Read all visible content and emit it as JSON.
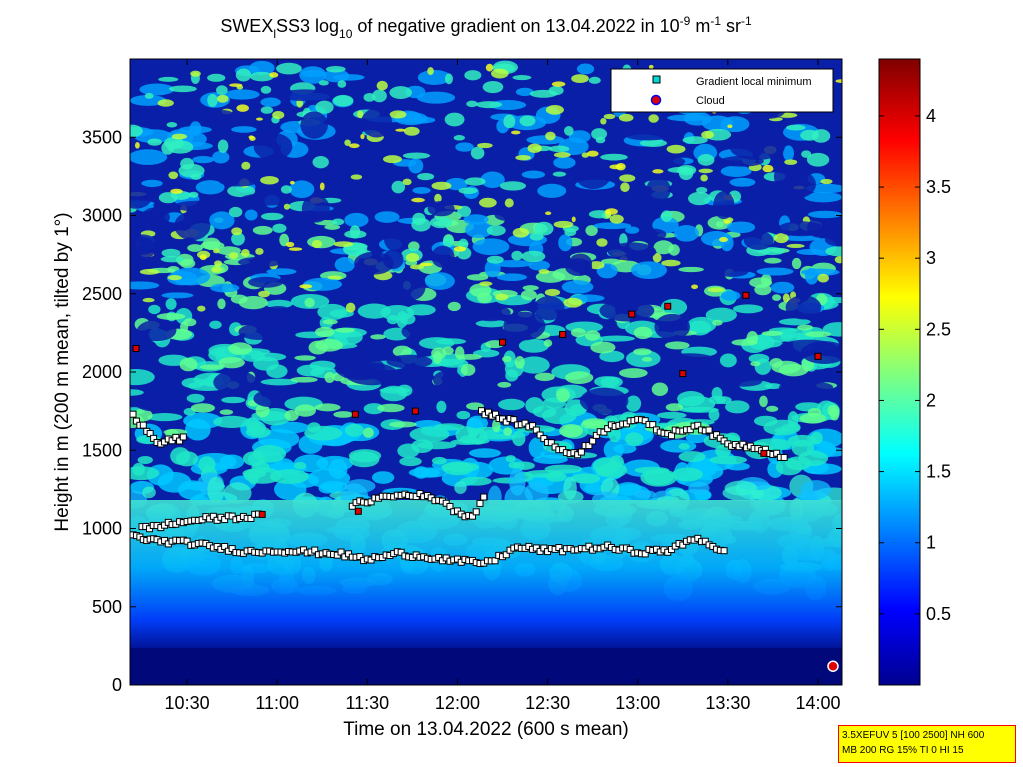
{
  "chart_data": {
    "type": "heatmap",
    "title": {
      "prefix": "SWEX",
      "prefix_sub": "l",
      "main": "SS3 log",
      "main_sub": "10",
      "rest": " of negative gradient on 13.04.2022 in 10",
      "exp1": "-9",
      "unit1": " m",
      "exp2": "-1",
      "unit2": " sr",
      "exp3": "-1"
    },
    "xlabel": "Time on 13.04.2022 (600 s mean)",
    "ylabel": "Height in m (200 m mean, tilted by 1°)",
    "x_ticks": [
      "10:30",
      "11:00",
      "11:30",
      "12:00",
      "12:30",
      "13:00",
      "13:30",
      "14:00"
    ],
    "x_tick_minutes": [
      630,
      660,
      690,
      720,
      750,
      780,
      810,
      840
    ],
    "xlim_minutes": [
      611,
      848
    ],
    "y_ticks": [
      0,
      500,
      1000,
      1500,
      2000,
      2500,
      3000,
      3500
    ],
    "ylim": [
      0,
      4000
    ],
    "colorbar_ticks": [
      0.5,
      1,
      1.5,
      2,
      2.5,
      3,
      3.5,
      4
    ],
    "clim": [
      0,
      4.4
    ],
    "colormap": "jet",
    "legend": {
      "placement": "top-right",
      "entries": [
        {
          "label": "Gradient local minimum",
          "marker": "square",
          "color": "#00d8d8"
        },
        {
          "label": "Cloud",
          "marker": "circle",
          "color": "#e00000",
          "edge": "#0000ff"
        }
      ]
    },
    "gradient_minimum_layers": [
      {
        "t": [
          612,
          620,
          630,
          640,
          650,
          660,
          670,
          680,
          690,
          700,
          710,
          720,
          730,
          740,
          750,
          760,
          770,
          780,
          790,
          800,
          810
        ],
        "h": [
          950,
          920,
          910,
          880,
          850,
          860,
          850,
          840,
          800,
          840,
          820,
          790,
          780,
          880,
          860,
          870,
          880,
          850,
          860,
          940,
          840
        ]
      },
      {
        "t": [
          615,
          625,
          635,
          645,
          655
        ],
        "h": [
          1000,
          1030,
          1060,
          1070,
          1080
        ]
      },
      {
        "t": [
          685,
          695,
          705,
          715,
          720,
          725,
          730
        ],
        "h": [
          1150,
          1200,
          1220,
          1180,
          1100,
          1080,
          1240
        ]
      },
      {
        "t": [
          728,
          735,
          745,
          750,
          755,
          760,
          770,
          780,
          790,
          800,
          810,
          820,
          830
        ],
        "h": [
          1750,
          1700,
          1650,
          1560,
          1490,
          1480,
          1650,
          1700,
          1600,
          1660,
          1540,
          1520,
          1450
        ]
      },
      {
        "t": [
          612,
          620,
          630
        ],
        "h": [
          1720,
          1550,
          1580
        ]
      }
    ],
    "cloud_points": [
      {
        "t": 613,
        "h": 2150
      },
      {
        "t": 686,
        "h": 1730
      },
      {
        "t": 706,
        "h": 1750
      },
      {
        "t": 735,
        "h": 2190
      },
      {
        "t": 755,
        "h": 2240
      },
      {
        "t": 778,
        "h": 2370
      },
      {
        "t": 790,
        "h": 2420
      },
      {
        "t": 795,
        "h": 1990
      },
      {
        "t": 816,
        "h": 2490
      },
      {
        "t": 822,
        "h": 1480
      },
      {
        "t": 840,
        "h": 2100
      },
      {
        "t": 655,
        "h": 1090
      },
      {
        "t": 687,
        "h": 1110
      },
      {
        "t": 845,
        "h": 120
      }
    ]
  },
  "info_box": {
    "line1": "3.5XEFUV 5 [100 2500] NH 600",
    "line2": "MB 200 RG 15% TI 0 HI 15"
  }
}
